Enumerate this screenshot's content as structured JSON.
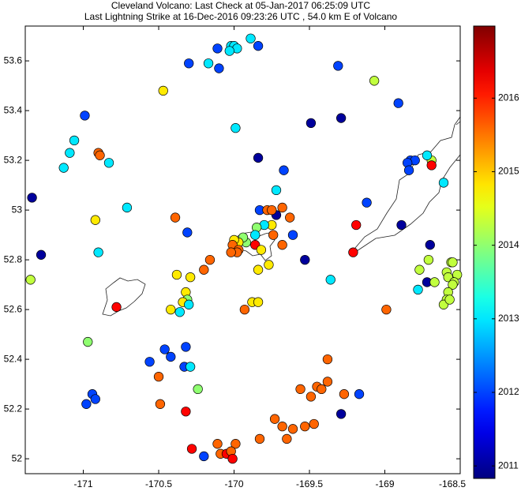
{
  "chart_data": {
    "type": "scatter",
    "title": "Cleveland Volcano: Last Check at 05-Jan-2017 06:25:09 UTC",
    "subtitle": "Last Lightning Strike at 16-Dec-2016 09:23:26 UTC , 54.0 km E of Volcano",
    "colormap": "jet",
    "xlim": [
      -171.385,
      -168.5
    ],
    "ylim": [
      51.94,
      53.74
    ],
    "xticks": [
      -171,
      -170.5,
      -170,
      -169.5,
      -169,
      -168.5
    ],
    "yticks": [
      52,
      52.2,
      52.4,
      52.6,
      52.8,
      53,
      53.2,
      53.4,
      53.6
    ],
    "clim": [
      2010.83,
      2016.98
    ],
    "cticks": [
      2011,
      2012,
      2013,
      2014,
      2015,
      2016
    ],
    "x": [
      -170.02,
      -170.0,
      -169.89,
      -169.98,
      -170.03,
      -170.11,
      -169.84,
      -170.17,
      -170.3,
      -170.1,
      -170.47,
      -169.99,
      -170.99,
      -171.06,
      -171.09,
      -171.13,
      -170.83,
      -170.9,
      -170.89,
      -171.34,
      -170.92,
      -170.71,
      -171.28,
      -170.9,
      -171.35,
      -170.97,
      -169.31,
      -169.07,
      -168.91,
      -169.29,
      -169.49,
      -169.84,
      -169.67,
      -169.72,
      -169.72,
      -169.83,
      -169.78,
      -169.75,
      -169.68,
      -169.63,
      -169.75,
      -169.8,
      -169.74,
      -169.68,
      -169.61,
      -169.53,
      -169.85,
      -169.86,
      -169.92,
      -169.94,
      -169.86,
      -169.97,
      -170.0,
      -170.01,
      -169.97,
      -169.98,
      -170.02,
      -169.82,
      -169.77,
      -169.84,
      -170.16,
      -170.2,
      -170.39,
      -170.31,
      -170.38,
      -170.29,
      -170.32,
      -170.31,
      -170.34,
      -170.3,
      -170.42,
      -170.36,
      -170.78,
      -169.88,
      -169.84,
      -169.93,
      -169.36,
      -169.12,
      -169.19,
      -169.21,
      -168.89,
      -168.77,
      -168.72,
      -168.67,
      -168.7,
      -168.71,
      -168.61,
      -168.83,
      -168.8,
      -168.85,
      -168.84,
      -168.69,
      -168.69,
      -168.72,
      -168.99,
      -168.78,
      -168.56,
      -168.55,
      -168.59,
      -168.52,
      -168.58,
      -168.54,
      -168.55,
      -168.58,
      -168.59,
      -168.61,
      -168.57,
      -170.32,
      -170.33,
      -170.42,
      -170.46,
      -170.56,
      -170.29,
      -170.24,
      -170.5,
      -170.94,
      -170.92,
      -170.98,
      -170.49,
      -170.32,
      -169.38,
      -169.56,
      -169.45,
      -169.42,
      -169.38,
      -169.49,
      -169.27,
      -169.17,
      -169.29,
      -169.73,
      -169.68,
      -169.61,
      -169.53,
      -169.47,
      -169.65,
      -169.83,
      -170.28,
      -170.11,
      -169.99,
      -170.2,
      -170.09,
      -170.05,
      -170.02,
      -170.01
    ],
    "y": [
      53.66,
      53.66,
      53.69,
      53.65,
      53.64,
      53.65,
      53.66,
      53.59,
      53.59,
      53.57,
      53.48,
      53.33,
      53.38,
      53.28,
      53.23,
      53.17,
      53.19,
      53.23,
      53.22,
      53.05,
      52.96,
      53.01,
      52.82,
      52.83,
      52.72,
      52.47,
      53.58,
      53.52,
      53.43,
      53.37,
      53.35,
      53.21,
      53.16,
      53.08,
      52.98,
      53.0,
      53.0,
      53.0,
      53.01,
      52.97,
      52.94,
      52.94,
      52.9,
      52.86,
      52.9,
      52.8,
      52.93,
      52.9,
      52.87,
      52.89,
      52.86,
      52.87,
      52.88,
      52.86,
      52.84,
      52.83,
      52.83,
      52.84,
      52.78,
      52.76,
      52.8,
      52.76,
      52.97,
      52.91,
      52.74,
      52.73,
      52.67,
      52.64,
      52.63,
      52.62,
      52.6,
      52.59,
      52.61,
      52.63,
      52.63,
      52.6,
      52.72,
      53.03,
      52.94,
      52.83,
      52.94,
      52.76,
      52.71,
      52.71,
      52.86,
      52.8,
      53.11,
      53.2,
      53.2,
      53.19,
      53.16,
      53.2,
      53.18,
      53.22,
      52.6,
      52.68,
      52.79,
      52.79,
      52.75,
      52.74,
      52.73,
      52.71,
      52.7,
      52.67,
      52.64,
      52.62,
      52.64,
      52.45,
      52.37,
      52.41,
      52.44,
      52.39,
      52.37,
      52.28,
      52.33,
      52.26,
      52.24,
      52.22,
      52.22,
      52.19,
      52.4,
      52.28,
      52.29,
      52.28,
      52.31,
      52.25,
      52.26,
      52.26,
      52.18,
      52.16,
      52.13,
      52.12,
      52.13,
      52.14,
      52.08,
      52.08,
      52.04,
      52.06,
      52.06,
      52.01,
      52.02,
      52.02,
      52.03,
      52.0
    ],
    "color_values": [
      2013,
      2013,
      2013,
      2013,
      2013,
      2012,
      2012,
      2013,
      2012,
      2012,
      2014.8,
      2013,
      2012,
      2013,
      2013,
      2013,
      2013,
      2015.6,
      2015.6,
      2011,
      2014.8,
      2013,
      2011,
      2013,
      2014.3,
      2014,
      2012,
      2014.3,
      2012,
      2011,
      2011,
      2011,
      2012,
      2013,
      2011,
      2012,
      2015.6,
      2015.6,
      2015.6,
      2015.6,
      2014.8,
      2013,
      2015.6,
      2015.6,
      2012,
      2011,
      2014,
      2013,
      2014,
      2014,
      2016.2,
      2014.8,
      2014.8,
      2015.6,
      2015.6,
      2015.6,
      2015.6,
      2014.8,
      2014.8,
      2014.8,
      2015.6,
      2015.6,
      2015.6,
      2012,
      2014.8,
      2014.8,
      2014.8,
      2014,
      2014.8,
      2013,
      2014.8,
      2013,
      2016.2,
      2014.8,
      2014.8,
      2015.6,
      2013,
      2012,
      2016.2,
      2016.2,
      2011,
      2014.3,
      2011,
      2014.3,
      2011,
      2014.3,
      2013,
      2012,
      2012,
      2012,
      2012,
      2014.3,
      2016.2,
      2013,
      2015.6,
      2013,
      2014.3,
      2014.3,
      2014.3,
      2014.3,
      2014.3,
      2014.3,
      2014.3,
      2014.3,
      2014.3,
      2014.3,
      2014.3,
      2012,
      2012,
      2012,
      2012,
      2012,
      2013,
      2014,
      2015.6,
      2012,
      2012,
      2012,
      2015.6,
      2016.2,
      2015.6,
      2015.6,
      2015.6,
      2015.6,
      2015.6,
      2015.6,
      2015.6,
      2012,
      2011,
      2015.6,
      2015.6,
      2015.6,
      2015.6,
      2015.6,
      2015.6,
      2015.6,
      2016.2,
      2015.6,
      2015.6,
      2012,
      2015.6,
      2016.2,
      2015.6,
      2016.2
    ]
  }
}
